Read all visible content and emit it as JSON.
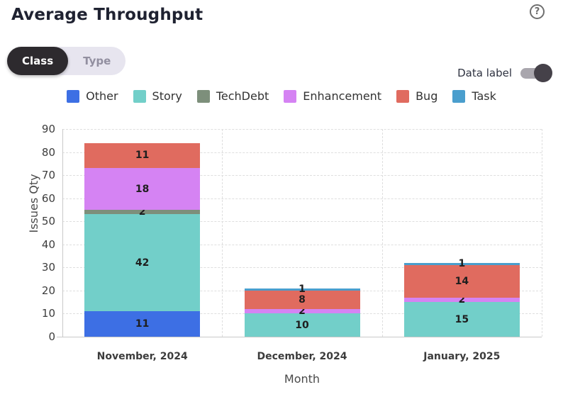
{
  "header": {
    "title": "Average Throughput",
    "help_icon_glyph": "?"
  },
  "controls": {
    "view_toggle": {
      "options": [
        {
          "label": "Class",
          "active": true
        },
        {
          "label": "Type",
          "active": false
        }
      ]
    },
    "data_label_toggle": {
      "label": "Data label",
      "on": true
    }
  },
  "colors": {
    "accent_dark": "#2d2a2e",
    "pill_track": "#e7e5ef",
    "switch_track": "#a9a6ad",
    "switch_knob": "#454149"
  },
  "chart_data": {
    "type": "bar",
    "stacked": true,
    "title": "Average Throughput",
    "xlabel": "Month",
    "ylabel": "Issues Qty",
    "ylim": [
      0,
      90
    ],
    "ytick_step": 10,
    "grid": true,
    "legend_position": "top",
    "data_labels_visible": true,
    "categories": [
      "November, 2024",
      "December, 2024",
      "January, 2025"
    ],
    "series": [
      {
        "name": "Other",
        "color": "#3d6fe4",
        "values": [
          11,
          0,
          0
        ]
      },
      {
        "name": "Story",
        "color": "#72cfc9",
        "values": [
          42,
          10,
          15
        ]
      },
      {
        "name": "TechDebt",
        "color": "#7d8f7b",
        "values": [
          2,
          0,
          0
        ]
      },
      {
        "name": "Enhancement",
        "color": "#d583f3",
        "values": [
          18,
          2,
          2
        ]
      },
      {
        "name": "Bug",
        "color": "#e06b5f",
        "values": [
          11,
          8,
          14
        ]
      },
      {
        "name": "Task",
        "color": "#4a9ecd",
        "values": [
          0,
          1,
          1
        ]
      }
    ],
    "totals": [
      84,
      21,
      32
    ]
  }
}
